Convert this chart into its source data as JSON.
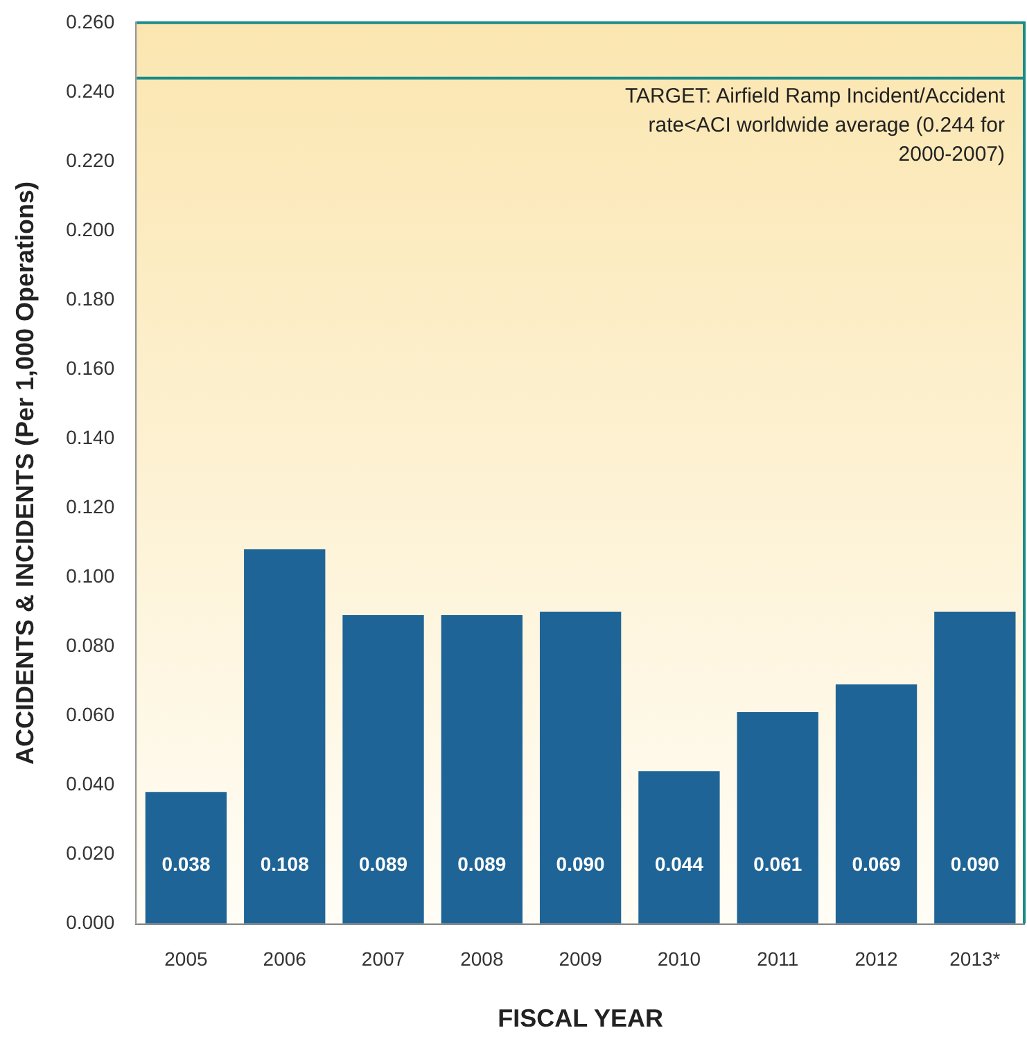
{
  "chart_data": {
    "type": "bar",
    "xlabel": "FISCAL YEAR",
    "ylabel": "ACCIDENTS & INCIDENTS (Per 1,000 Operations)",
    "categories": [
      "2005",
      "2006",
      "2007",
      "2008",
      "2009",
      "2010",
      "2011",
      "2012",
      "2013*"
    ],
    "values": [
      0.038,
      0.108,
      0.089,
      0.089,
      0.09,
      0.044,
      0.061,
      0.069,
      0.09
    ],
    "color": "#1f6496",
    "ylim": [
      0,
      0.26
    ],
    "yticks": [
      {
        "value": 0,
        "label": "0.000"
      },
      {
        "value": 0.02,
        "label": "0.020"
      },
      {
        "value": 0.04,
        "label": "0.040"
      },
      {
        "value": 0.06,
        "label": "0.060"
      },
      {
        "value": 0.08,
        "label": "0.080"
      },
      {
        "value": 0.1,
        "label": "0.100"
      },
      {
        "value": 0.12,
        "label": "0.120"
      },
      {
        "value": 0.14,
        "label": "0.140"
      },
      {
        "value": 0.16,
        "label": "0.160"
      },
      {
        "value": 0.18,
        "label": "0.180"
      },
      {
        "value": 0.2,
        "label": "0.200"
      },
      {
        "value": 0.22,
        "label": "0.220"
      },
      {
        "value": 0.24,
        "label": "0.240"
      },
      {
        "value": 0.26,
        "label": "0.260"
      }
    ],
    "ref_lines": [
      {
        "axis": "y",
        "value": 0.244,
        "label": "TARGET: Airfield Ramp Incident/Accident rate<ACI worldwide average (0.244 for 2000-2007)",
        "color": "#1a8a8a"
      }
    ],
    "value_labels": [
      "0.038",
      "0.108",
      "0.089",
      "0.089",
      "0.090",
      "0.044",
      "0.061",
      "0.069",
      "0.090"
    ],
    "grid": false,
    "legend": false
  }
}
